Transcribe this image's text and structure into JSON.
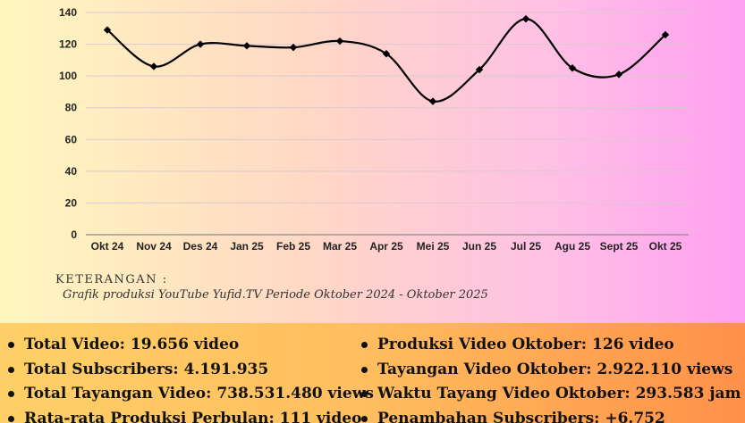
{
  "chart_data": {
    "type": "line",
    "categories": [
      "Okt 24",
      "Nov 24",
      "Des 24",
      "Jan 25",
      "Feb 25",
      "Mar 25",
      "Apr 25",
      "Mei 25",
      "Jun 25",
      "Jul 25",
      "Agu 25",
      "Sept 25",
      "Okt 25"
    ],
    "series": [
      {
        "values": [
          129,
          106,
          120,
          119,
          118,
          122,
          114,
          84,
          104,
          136,
          105,
          101,
          126
        ]
      }
    ],
    "yticks": [
      "0",
      "20",
      "40",
      "60",
      "80",
      "100",
      "120",
      "140"
    ],
    "ylim": [
      0,
      140
    ],
    "grid": true,
    "line_color": "#000000",
    "marker": "diamond"
  },
  "caption": {
    "title": "KETERANGAN :",
    "text": "Grafik produksi YouTube Yufid.TV Periode Oktober 2024 - Oktober 2025"
  },
  "stats": {
    "left": [
      "Total Video: 19.656 video",
      "Total Subscribers: 4.191.935",
      "Total Tayangan Video: 738.531.480 views",
      "Rata-rata Produksi Perbulan: 111 video"
    ],
    "right": [
      "Produksi Video Oktober: 126 video",
      "Tayangan Video Oktober: 2.922.110 views",
      "Waktu Tayang Video Oktober: 293.583 jam",
      "Penambahan Subscribers: +6.752"
    ]
  },
  "colors": {
    "top_gradient": [
      "#fff7bf",
      "#ff9ff0"
    ],
    "bottom_gradient": [
      "#ffd067",
      "#ff9048"
    ]
  }
}
